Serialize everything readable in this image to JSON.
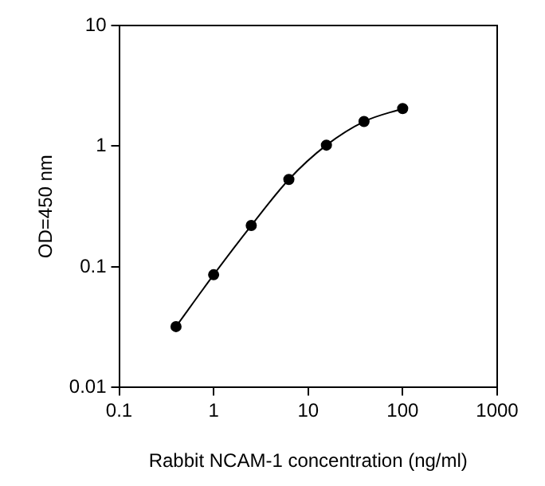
{
  "chart_data": {
    "type": "line",
    "xlabel": "Rabbit NCAM-1 concentration (ng/ml)",
    "ylabel": "OD=450 nm",
    "log": "xy",
    "marker": "circle",
    "grid": false,
    "legend": false,
    "x": [
      0.4,
      1,
      2.5,
      6.25,
      15.6,
      39,
      100
    ],
    "series": [
      {
        "color": "#000000",
        "values": [
          0.032,
          0.086,
          0.22,
          0.53,
          1.02,
          1.6,
          2.05
        ]
      }
    ],
    "xlim": [
      0.1,
      1000
    ],
    "xticks": [
      0.1,
      1,
      10,
      100,
      1000
    ],
    "ylim": [
      0.01,
      10
    ],
    "yticks": [
      0.01,
      0.1,
      1,
      10
    ]
  }
}
